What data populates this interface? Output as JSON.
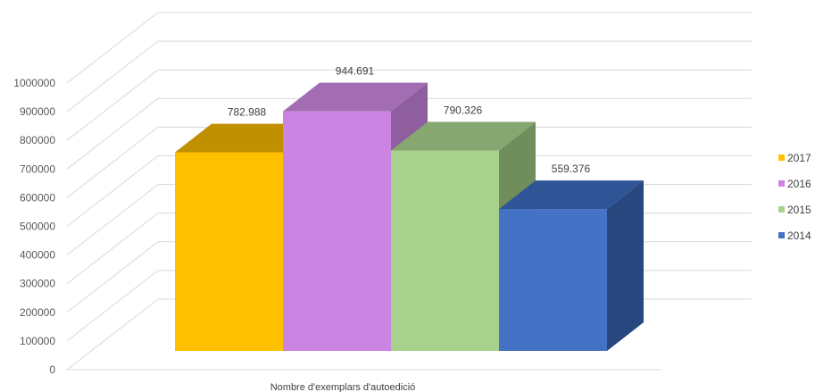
{
  "chart_data": {
    "type": "bar",
    "subtype": "3d-clustered-column",
    "categories": [
      "Nombre d'exemplars d'autoedició"
    ],
    "series": [
      {
        "name": "2017",
        "values": [
          782988
        ],
        "label": "782.988",
        "color": "#FFC000",
        "top_color": "#C09000",
        "side_color": "#BF9000"
      },
      {
        "name": "2016",
        "values": [
          944691
        ],
        "label": "944.691",
        "color": "#CC84E2",
        "top_color": "#A36DB4",
        "side_color": "#8E5E9F"
      },
      {
        "name": "2015",
        "values": [
          790326
        ],
        "label": "790.326",
        "color": "#A9D18E",
        "top_color": "#86A870",
        "side_color": "#6F8E5C"
      },
      {
        "name": "2014",
        "values": [
          559376
        ],
        "label": "559.376",
        "color": "#4472C4",
        "top_color": "#2F5597",
        "side_color": "#27477E"
      }
    ],
    "yticks": [
      "0",
      "100000",
      "200000",
      "300000",
      "400000",
      "500000",
      "600000",
      "700000",
      "800000",
      "900000",
      "1000000"
    ],
    "ylim": [
      0,
      1000000
    ],
    "grid": true,
    "legend": "right"
  }
}
